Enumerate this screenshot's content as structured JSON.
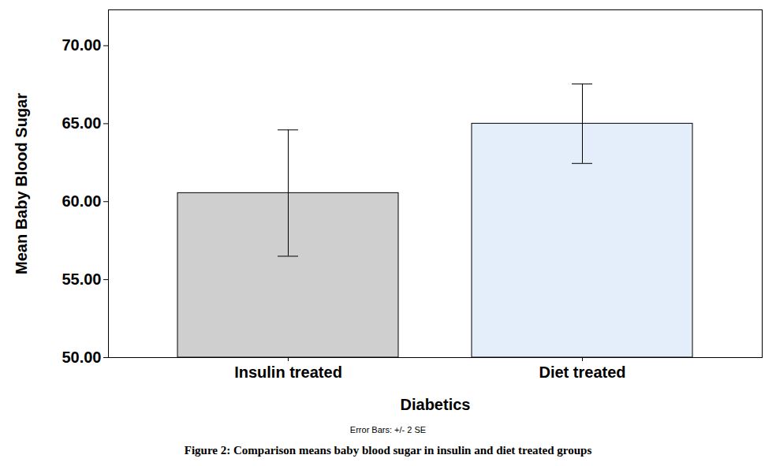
{
  "chart_data": {
    "type": "bar",
    "title": "Figure 2: Comparison means baby blood sugar in insulin and diet treated groups",
    "note": "Error Bars: +/- 2 SE",
    "x_label": "Diabetics",
    "y_label": "Mean Baby Blood Sugar",
    "categories": [
      "Insulin treated",
      "Diet treated"
    ],
    "values": [
      60.55,
      65.0
    ],
    "errors": [
      4.05,
      2.55
    ],
    "colors": [
      "#cfcfcf",
      "#e3eefa"
    ],
    "ylim": [
      50,
      72.3
    ],
    "yticks": [
      {
        "value": 50,
        "label": "50.00"
      },
      {
        "value": 55,
        "label": "55.00"
      },
      {
        "value": 60,
        "label": "60.00"
      },
      {
        "value": 65,
        "label": "65.00"
      },
      {
        "value": 70,
        "label": "70.00"
      }
    ],
    "grid": false
  }
}
